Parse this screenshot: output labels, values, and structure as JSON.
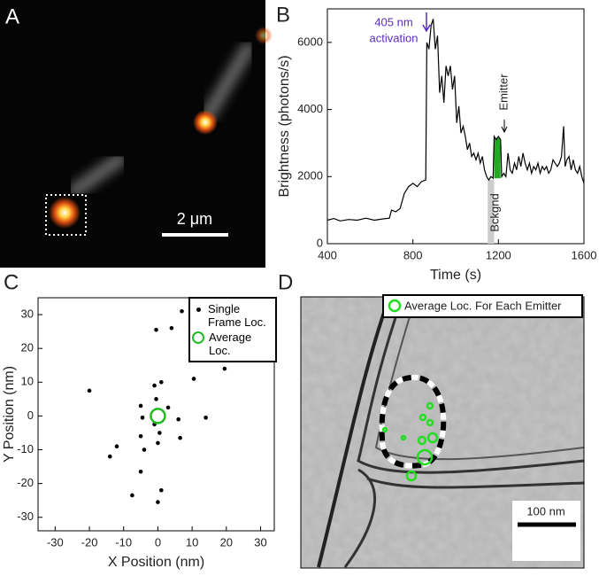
{
  "panels": {
    "A": {
      "label": "A",
      "scale_bar": "2 μm"
    },
    "D": {
      "label": "D",
      "legend": "Average Loc. For Each Emitter",
      "scale_bar": "100 nm"
    }
  },
  "chart_data": [
    {
      "type": "line",
      "panel_label": "B",
      "xlabel": "Time (s)",
      "ylabel": "Brightness (photons/s)",
      "xlim": [
        400,
        1600
      ],
      "xticks": [
        400,
        800,
        1200,
        1600
      ],
      "ylim": [
        0,
        7000
      ],
      "yticks": [
        0,
        2000,
        4000,
        6000
      ],
      "annotations": [
        "405 nm",
        "activation",
        "Emitter",
        "Bckgnd"
      ],
      "annotation_color": "#5b2bbf",
      "background_window": [
        1150,
        1180
      ],
      "emitter_window": [
        1180,
        1210
      ],
      "x": [
        400,
        430,
        460,
        500,
        540,
        580,
        620,
        660,
        690,
        700,
        720,
        740,
        760,
        780,
        800,
        820,
        840,
        860,
        865,
        875,
        885,
        895,
        905,
        915,
        925,
        935,
        945,
        955,
        965,
        975,
        985,
        995,
        1005,
        1015,
        1025,
        1035,
        1045,
        1055,
        1065,
        1075,
        1085,
        1095,
        1105,
        1115,
        1125,
        1135,
        1145,
        1155,
        1165,
        1175,
        1180,
        1190,
        1200,
        1210,
        1215,
        1225,
        1235,
        1245,
        1255,
        1265,
        1275,
        1285,
        1295,
        1305,
        1315,
        1325,
        1335,
        1345,
        1355,
        1365,
        1375,
        1385,
        1395,
        1405,
        1415,
        1425,
        1435,
        1445,
        1455,
        1465,
        1475,
        1485,
        1495,
        1505,
        1512,
        1520,
        1530,
        1540,
        1550,
        1560,
        1570,
        1580,
        1590,
        1600
      ],
      "values": [
        700,
        750,
        680,
        720,
        700,
        760,
        700,
        740,
        760,
        1000,
        950,
        1050,
        1500,
        1700,
        1800,
        1700,
        1850,
        1900,
        6000,
        5800,
        6500,
        6700,
        5800,
        6200,
        4500,
        5000,
        4200,
        5300,
        5000,
        5300,
        4600,
        5000,
        3600,
        4100,
        3300,
        3500,
        3200,
        2800,
        3000,
        2600,
        2700,
        2500,
        2700,
        2400,
        2600,
        2200,
        2000,
        1900,
        2000,
        1950,
        3200,
        3100,
        3200,
        3100,
        2000,
        2100,
        2000,
        2700,
        2200,
        2100,
        2400,
        2200,
        2600,
        2300,
        2700,
        2400,
        2200,
        2400,
        2100,
        2300,
        2200,
        2400,
        2100,
        2300,
        2200,
        2300,
        2100,
        2200,
        2500,
        2400,
        2300,
        2400,
        2600,
        3500,
        2300,
        2500,
        2600,
        2200,
        2500,
        2200,
        2100,
        2300,
        2000,
        1800
      ],
      "color": "#000000",
      "emitter_color": "#22aa22",
      "background_color": "#cccccc"
    },
    {
      "type": "scatter",
      "panel_label": "C",
      "xlabel": "X Position (nm)",
      "ylabel": "Y Position (nm)",
      "xlim": [
        -35,
        34
      ],
      "xticks": [
        -30,
        -20,
        -10,
        0,
        10,
        20,
        30
      ],
      "ylim": [
        -34,
        35
      ],
      "yticks": [
        -30,
        -20,
        -10,
        0,
        10,
        20,
        30
      ],
      "legend": "upper right",
      "series": [
        {
          "name": "Single Frame Loc.",
          "color": "#000000",
          "x": [
            7,
            4,
            -0.5,
            19.5,
            10.5,
            -1,
            1,
            -20,
            -0.5,
            -5,
            3,
            -4.5,
            14,
            6,
            -1,
            0.5,
            -5,
            0,
            6.5,
            -12,
            -4,
            -14,
            -5,
            1,
            -7.5,
            0
          ],
          "values": [
            31,
            26,
            25.5,
            14,
            11,
            9,
            10,
            7.5,
            5,
            3,
            2.5,
            -0.5,
            -0.5,
            -1,
            -2.5,
            -5,
            -6,
            -8,
            -6.5,
            -9,
            -10,
            -12,
            -16.5,
            -22,
            -23.5,
            -25.5
          ]
        },
        {
          "name": "Average Loc.",
          "color": "#22bb22",
          "x": [
            0
          ],
          "values": [
            0
          ]
        }
      ]
    }
  ]
}
